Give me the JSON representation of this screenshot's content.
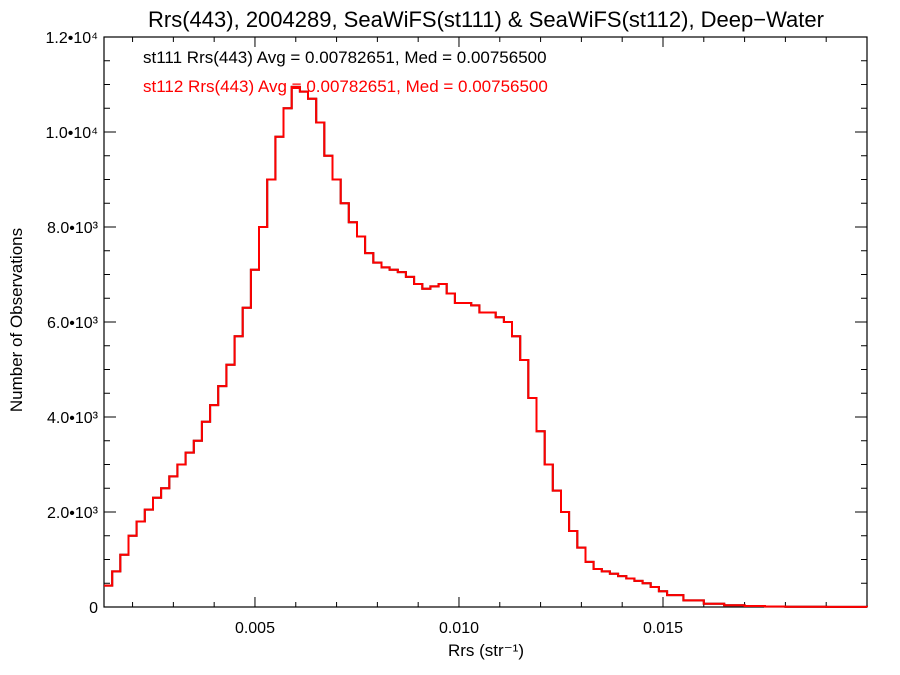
{
  "chart_data": {
    "type": "line",
    "title": "Rrs(443), 2004289, SeaWiFS(st111) & SeaWiFS(st112), Deep−Water",
    "xlabel": "Rrs (str⁻¹)",
    "ylabel": "Number of Observations",
    "xlim": [
      0.0013,
      0.02
    ],
    "ylim": [
      0,
      12000
    ],
    "x_ticks": [
      {
        "value": 0.005,
        "label": "0.005"
      },
      {
        "value": 0.01,
        "label": "0.010"
      },
      {
        "value": 0.015,
        "label": "0.015"
      }
    ],
    "y_ticks": [
      {
        "value": 0,
        "label": "0"
      },
      {
        "value": 2000,
        "label": "2.0•10³"
      },
      {
        "value": 4000,
        "label": "4.0•10³"
      },
      {
        "value": 6000,
        "label": "6.0•10³"
      },
      {
        "value": 8000,
        "label": "8.0•10³"
      },
      {
        "value": 10000,
        "label": "1.0•10⁴"
      },
      {
        "value": 12000,
        "label": "1.2•10⁴"
      }
    ],
    "grid": false,
    "legend_position": "top-left",
    "series": [
      {
        "name": "st111 Rrs(443) Avg = 0.00782651, Med = 0.00756500",
        "color": "#000000",
        "x": [
          0.0013,
          0.0015,
          0.0017,
          0.0019,
          0.0021,
          0.0023,
          0.0025,
          0.0027,
          0.0029,
          0.0031,
          0.0033,
          0.0035,
          0.0037,
          0.0039,
          0.0041,
          0.0043,
          0.0045,
          0.0047,
          0.0049,
          0.0051,
          0.0053,
          0.0055,
          0.0057,
          0.0059,
          0.0061,
          0.0063,
          0.0065,
          0.0067,
          0.0069,
          0.0071,
          0.0073,
          0.0075,
          0.0077,
          0.0079,
          0.0081,
          0.0083,
          0.0085,
          0.0087,
          0.0089,
          0.0091,
          0.0093,
          0.0095,
          0.0097,
          0.0099,
          0.0101,
          0.0103,
          0.0105,
          0.0107,
          0.0109,
          0.0111,
          0.0113,
          0.0115,
          0.0117,
          0.0119,
          0.0121,
          0.0123,
          0.0125,
          0.0127,
          0.0129,
          0.0131,
          0.0133,
          0.0135,
          0.0137,
          0.0139,
          0.0141,
          0.0143,
          0.0145,
          0.0147,
          0.0149,
          0.0151,
          0.0155,
          0.016,
          0.0165,
          0.017,
          0.0175,
          0.018,
          0.019,
          0.02
        ],
        "values": [
          450,
          750,
          1100,
          1500,
          1800,
          2050,
          2300,
          2500,
          2750,
          3000,
          3250,
          3500,
          3900,
          4250,
          4650,
          5100,
          5700,
          6300,
          7100,
          8000,
          9000,
          9900,
          10500,
          10950,
          10850,
          10700,
          10200,
          9500,
          9000,
          8500,
          8100,
          7800,
          7450,
          7250,
          7150,
          7100,
          7050,
          6950,
          6800,
          6700,
          6750,
          6800,
          6600,
          6400,
          6400,
          6350,
          6200,
          6200,
          6100,
          6000,
          5700,
          5200,
          4400,
          3700,
          3000,
          2450,
          2000,
          1600,
          1250,
          950,
          800,
          750,
          700,
          650,
          600,
          550,
          500,
          420,
          330,
          250,
          140,
          70,
          35,
          20,
          10,
          5,
          2,
          0
        ]
      },
      {
        "name": "st112 Rrs(443) Avg = 0.00782651, Med = 0.00756500",
        "color": "#ff0000",
        "x": [
          0.0013,
          0.0015,
          0.0017,
          0.0019,
          0.0021,
          0.0023,
          0.0025,
          0.0027,
          0.0029,
          0.0031,
          0.0033,
          0.0035,
          0.0037,
          0.0039,
          0.0041,
          0.0043,
          0.0045,
          0.0047,
          0.0049,
          0.0051,
          0.0053,
          0.0055,
          0.0057,
          0.0059,
          0.0061,
          0.0063,
          0.0065,
          0.0067,
          0.0069,
          0.0071,
          0.0073,
          0.0075,
          0.0077,
          0.0079,
          0.0081,
          0.0083,
          0.0085,
          0.0087,
          0.0089,
          0.0091,
          0.0093,
          0.0095,
          0.0097,
          0.0099,
          0.0101,
          0.0103,
          0.0105,
          0.0107,
          0.0109,
          0.0111,
          0.0113,
          0.0115,
          0.0117,
          0.0119,
          0.0121,
          0.0123,
          0.0125,
          0.0127,
          0.0129,
          0.0131,
          0.0133,
          0.0135,
          0.0137,
          0.0139,
          0.0141,
          0.0143,
          0.0145,
          0.0147,
          0.0149,
          0.0151,
          0.0155,
          0.016,
          0.0165,
          0.017,
          0.0175,
          0.018,
          0.019,
          0.02
        ],
        "values": [
          450,
          750,
          1100,
          1500,
          1800,
          2050,
          2300,
          2500,
          2750,
          3000,
          3250,
          3500,
          3900,
          4250,
          4650,
          5100,
          5700,
          6300,
          7100,
          8000,
          9000,
          9900,
          10500,
          10950,
          10850,
          10700,
          10200,
          9500,
          9000,
          8500,
          8100,
          7800,
          7450,
          7250,
          7150,
          7100,
          7050,
          6950,
          6800,
          6700,
          6750,
          6800,
          6600,
          6400,
          6400,
          6350,
          6200,
          6200,
          6100,
          6000,
          5700,
          5200,
          4400,
          3700,
          3000,
          2450,
          2000,
          1600,
          1250,
          950,
          800,
          750,
          700,
          650,
          600,
          550,
          500,
          420,
          330,
          250,
          140,
          70,
          35,
          20,
          10,
          5,
          2,
          0
        ]
      }
    ]
  }
}
